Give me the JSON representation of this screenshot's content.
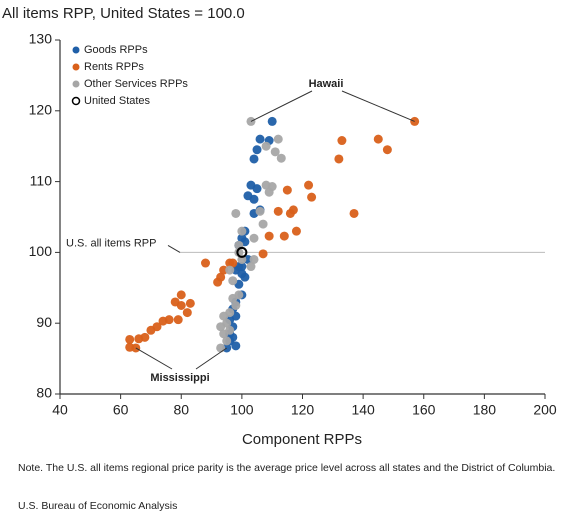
{
  "chart_data": {
    "type": "scatter",
    "title": "All items RPP, United States = 100.0",
    "xlabel": "Component RPPs",
    "note": "Note. The U.S. all items regional price parity is the average price level across all states and the District of Columbia.",
    "source": "U.S. Bureau of Economic Analysis",
    "xlim": [
      40,
      200
    ],
    "ylim": [
      80,
      130
    ],
    "xticks": [
      40,
      60,
      80,
      100,
      120,
      140,
      160,
      180,
      200
    ],
    "yticks": [
      80,
      90,
      100,
      110,
      120,
      130
    ],
    "reference_line": {
      "label": "U.S. all items RPP",
      "value": 100
    },
    "annotations": [
      "Hawaii",
      "Mississippi"
    ],
    "legend": "upper left",
    "series": [
      {
        "name": "Goods RPPs",
        "color": "#1f5fa8",
        "x": [
          110,
          106,
          109,
          105,
          104,
          103,
          105,
          104,
          102,
          106,
          104,
          101,
          100,
          101,
          99,
          102,
          98,
          100,
          101,
          99,
          100,
          98,
          97,
          98,
          96,
          97,
          96,
          97,
          96,
          98,
          95,
          99,
          100
        ],
        "values": [
          118.5,
          116,
          115.8,
          114.5,
          113.2,
          109.5,
          109,
          107.5,
          108,
          106,
          105.5,
          103,
          102,
          101.5,
          101,
          99,
          97.5,
          97,
          96.5,
          95.5,
          94,
          93,
          92,
          91,
          90.5,
          89.5,
          88.5,
          88,
          87.5,
          86.8,
          86.5,
          98,
          98
        ]
      },
      {
        "name": "Rents RPPs",
        "color": "#d9601a",
        "x": [
          157,
          145,
          148,
          133,
          132,
          137,
          122,
          123,
          115,
          117,
          116,
          112,
          118,
          114,
          109,
          107,
          96,
          94,
          88,
          93,
          92,
          83,
          80,
          78,
          80,
          82,
          79,
          76,
          74,
          72,
          70,
          68,
          66,
          63,
          63,
          65,
          97
        ],
        "values": [
          118.5,
          116,
          114.5,
          115.8,
          113.2,
          105.5,
          109.5,
          107.8,
          108.8,
          106,
          105.5,
          105.8,
          103,
          102.3,
          102.3,
          99.8,
          98.5,
          97.5,
          98.5,
          96.5,
          95.8,
          92.8,
          94,
          93,
          92.5,
          91.5,
          90.5,
          90.5,
          90.3,
          89.5,
          89,
          88,
          87.8,
          87.7,
          86.6,
          86.5,
          98.5
        ]
      },
      {
        "name": "Other Services RPPs",
        "color": "#a6a6a6",
        "x": [
          103,
          112,
          108,
          111,
          113,
          108,
          110,
          109,
          106,
          98,
          107,
          104,
          100,
          99,
          99,
          104,
          100,
          96,
          103,
          97,
          99,
          97,
          98,
          96,
          94,
          95,
          93,
          94,
          95,
          93,
          96
        ],
        "values": [
          118.5,
          116,
          115,
          114.2,
          113.3,
          109.5,
          109.3,
          108.5,
          105.8,
          105.5,
          104,
          102,
          103,
          101,
          100,
          99,
          99,
          97.5,
          98,
          96,
          94,
          93.5,
          92.5,
          91.5,
          91,
          90,
          89.5,
          88.5,
          87.5,
          86.5,
          89
        ]
      },
      {
        "name": "United States",
        "color": "#000000",
        "marker": "open",
        "x": [
          100
        ],
        "values": [
          100
        ]
      }
    ]
  }
}
